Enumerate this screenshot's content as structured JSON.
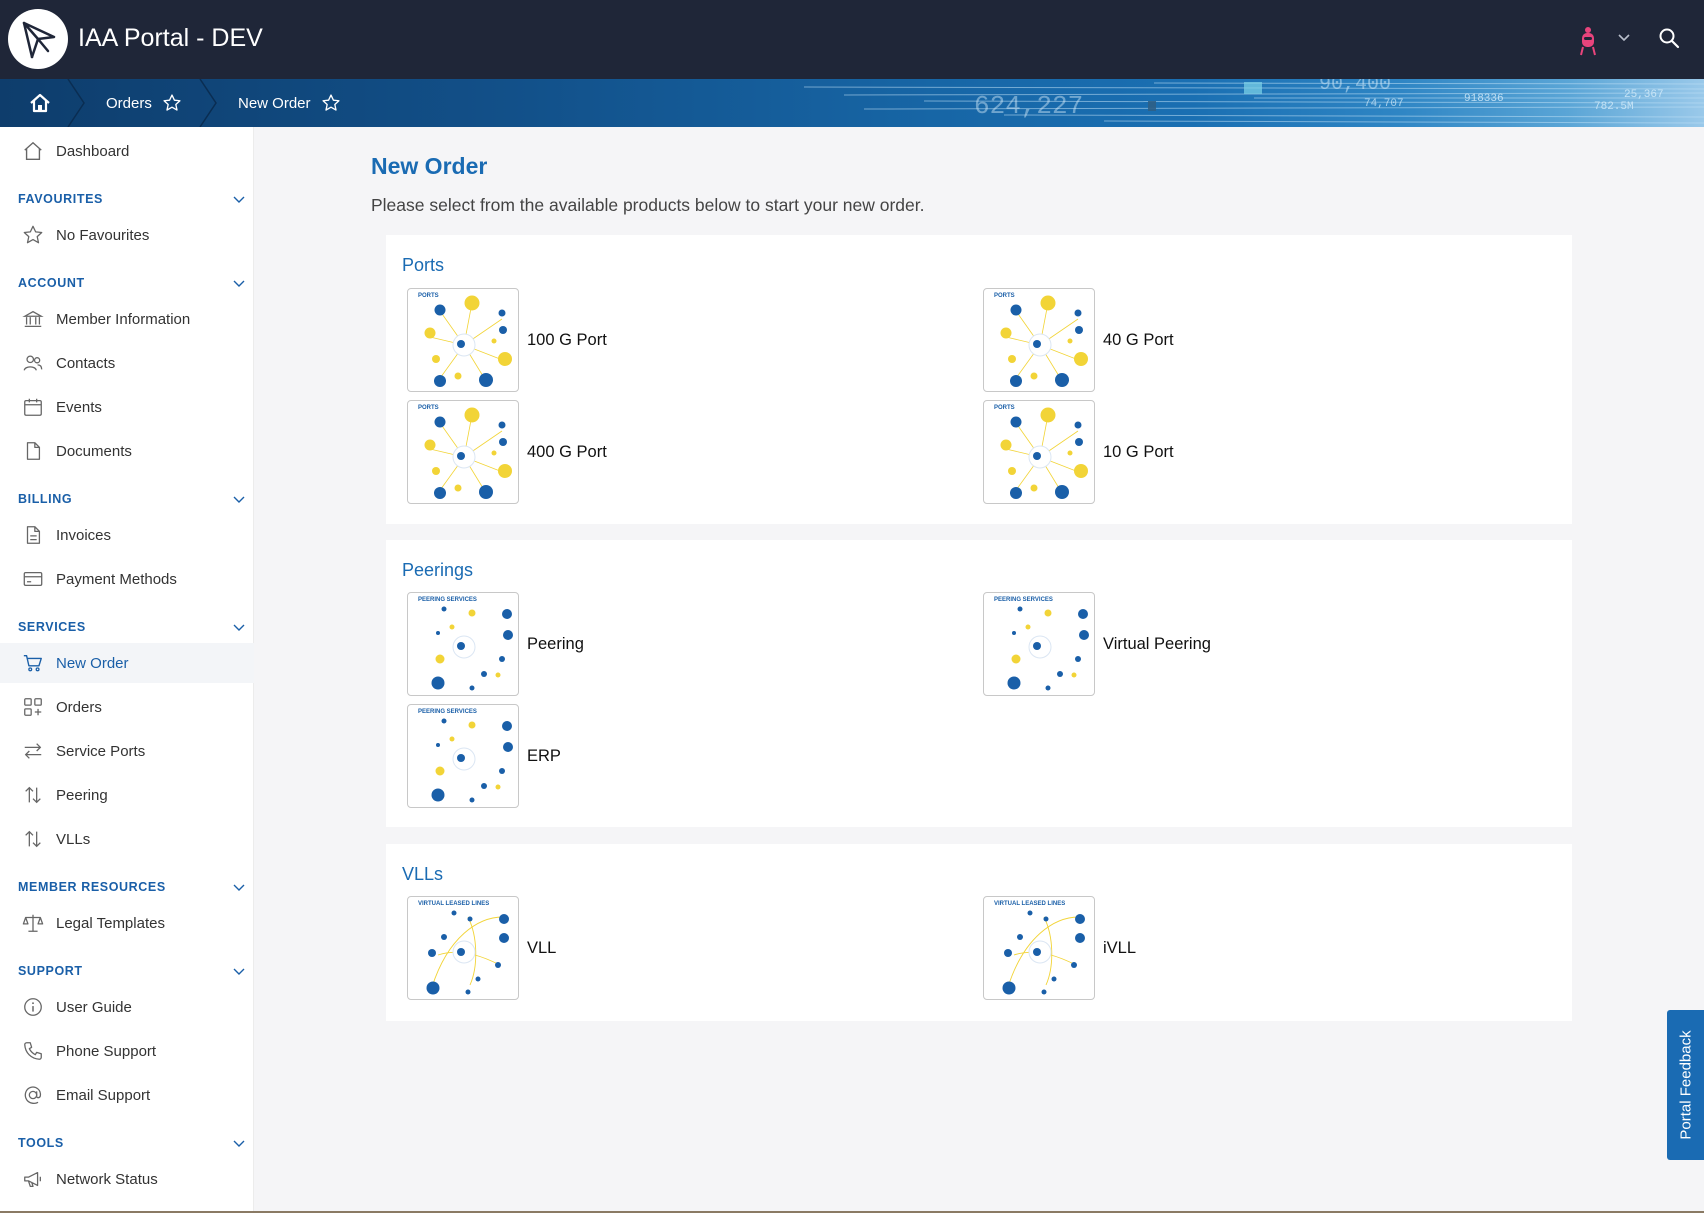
{
  "header": {
    "title": "IAA Portal - DEV"
  },
  "breadcrumb": {
    "items": [
      {
        "label": "Orders"
      },
      {
        "label": "New Order"
      }
    ],
    "banner_numbers": [
      "624,227",
      "90,400",
      "74,707",
      "918336",
      "782.5M",
      "25,367"
    ]
  },
  "sidebar": {
    "dashboard": "Dashboard",
    "sections": {
      "favourites": {
        "title": "FAVOURITES",
        "items": [
          "No Favourites"
        ]
      },
      "account": {
        "title": "ACCOUNT",
        "items": [
          "Member Information",
          "Contacts",
          "Events",
          "Documents"
        ]
      },
      "billing": {
        "title": "BILLING",
        "items": [
          "Invoices",
          "Payment Methods"
        ]
      },
      "services": {
        "title": "SERVICES",
        "items": [
          "New Order",
          "Orders",
          "Service Ports",
          "Peering",
          "VLLs"
        ]
      },
      "member_resources": {
        "title": "MEMBER RESOURCES",
        "items": [
          "Legal Templates"
        ]
      },
      "support": {
        "title": "SUPPORT",
        "items": [
          "User Guide",
          "Phone Support",
          "Email Support"
        ]
      },
      "tools": {
        "title": "TOOLS",
        "items": [
          "Network Status"
        ]
      }
    },
    "active_item": "New Order"
  },
  "main": {
    "title": "New Order",
    "subtitle": "Please select from the available products below to start your new order.",
    "groups": [
      {
        "title": "Ports",
        "thumb_label": "PORTS",
        "products": [
          "100 G Port",
          "40 G Port",
          "400 G Port",
          "10 G Port"
        ]
      },
      {
        "title": "Peerings",
        "thumb_label": "PEERING SERVICES",
        "products": [
          "Peering",
          "Virtual Peering",
          "ERP"
        ]
      },
      {
        "title": "VLLs",
        "thumb_label": "VIRTUAL LEASED LINES",
        "products": [
          "VLL",
          "iVLL"
        ]
      }
    ]
  },
  "feedback": {
    "label": "Portal Feedback"
  },
  "colors": {
    "header_bg": "#1f2638",
    "accent": "#1a6bb3",
    "thumb_blue": "#1a5fa8",
    "thumb_yellow": "#f2d437",
    "avatar_pink": "#e8447c"
  }
}
